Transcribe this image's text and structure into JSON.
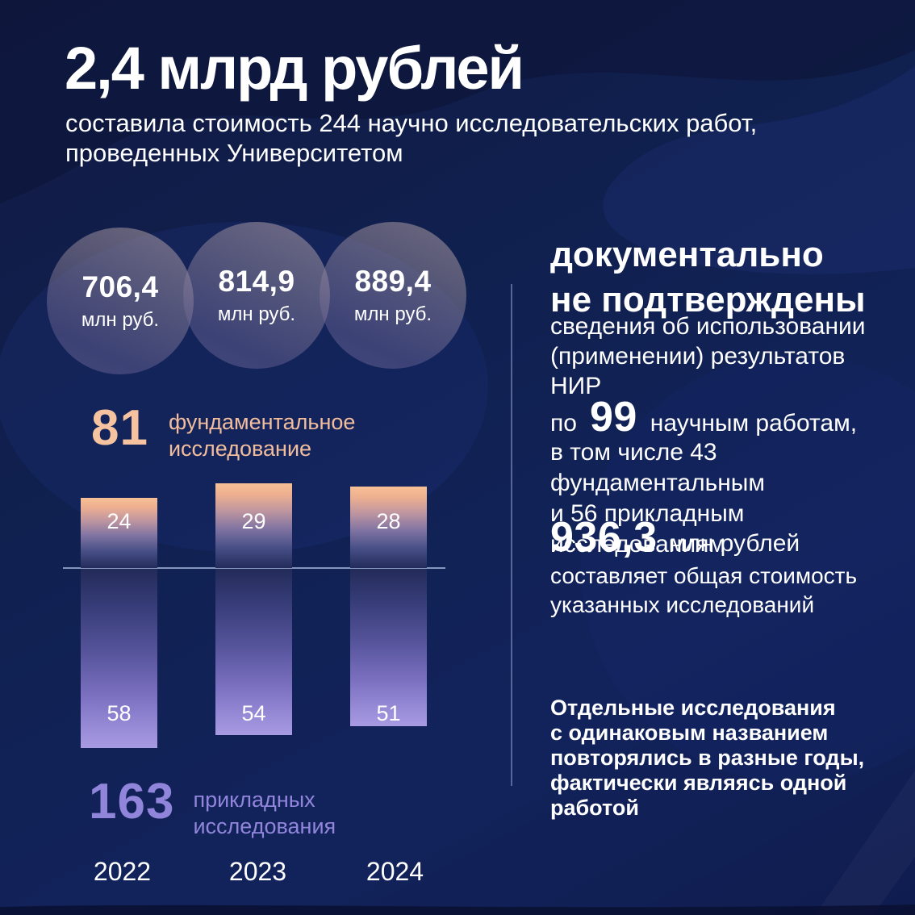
{
  "header": {
    "title": "2,4 млрд рублей",
    "subtitle": "составила стоимость 244 научно исследовательских работ,\nпроведенных Университетом"
  },
  "circles": [
    {
      "value": "706,4",
      "unit": "млн руб."
    },
    {
      "value": "814,9",
      "unit": "млн руб."
    },
    {
      "value": "889,4",
      "unit": "млн руб."
    }
  ],
  "fundamental": {
    "count": "81",
    "label": "фундаментальное\nисследование"
  },
  "applied": {
    "count": "163",
    "label": "прикладных\nисследования"
  },
  "chart_data": {
    "type": "bar",
    "orientation": "diverging-vertical",
    "categories": [
      "2022",
      "2023",
      "2024"
    ],
    "series": [
      {
        "name": "фундаментальное исследование",
        "total": 81,
        "values": [
          24,
          29,
          28
        ],
        "color": "#F6BE96",
        "direction": "up"
      },
      {
        "name": "прикладных исследования",
        "total": 163,
        "values": [
          58,
          54,
          51
        ],
        "color": "#A89AE2",
        "direction": "down"
      }
    ],
    "title": "",
    "xlabel": "",
    "ylabel": "",
    "grid": false,
    "legend_position": "none"
  },
  "right_panel": {
    "heading": "документально\nне подтверждены",
    "subheading": "сведения об использовании\n(применении) результатов НИР",
    "works": {
      "prefix": "по",
      "count": "99",
      "suffix": "научным работам,",
      "detail": "в том числе 43 фундаментальным\nи 56 прикладным исследованиям"
    },
    "cost": {
      "value": "936,3",
      "unit": "млн рублей",
      "detail": "составляет общая стоимость\nуказанных исследований"
    },
    "note": "Отдельные исследования\nс одинаковым названием\nповторялись в разные годы,\nфактически являясь одной\nработой"
  },
  "colors": {
    "background": "#101A46",
    "accent_peach": "#F6C3A0",
    "accent_purple": "#9085DB",
    "text_white": "#FFFFFF",
    "bar_top_gradient_start": "#F6BE96",
    "bar_bottom_gradient_end": "#A89AE2",
    "axis_line": "#9AA6CB",
    "circle_fill": "rgba(170,155,168,0.48)"
  }
}
